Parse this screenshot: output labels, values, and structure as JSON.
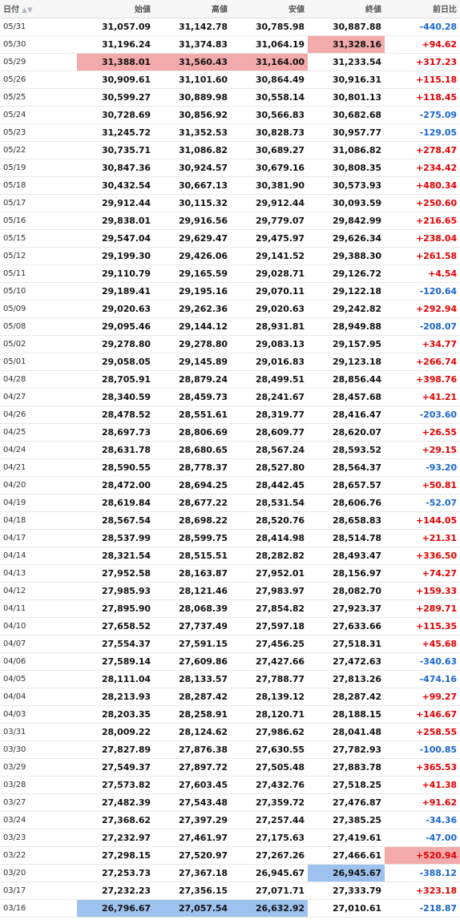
{
  "header": {
    "date": "日付",
    "open": "始値",
    "high": "高値",
    "low": "安値",
    "close": "終値",
    "change": "前日比"
  },
  "rows": [
    {
      "date": "05/31",
      "open": "31,057.09",
      "high": "31,142.78",
      "low": "30,785.98",
      "close": "30,887.88",
      "change": "-440.28"
    },
    {
      "date": "05/30",
      "open": "31,196.24",
      "high": "31,374.83",
      "low": "31,064.19",
      "close": "31,328.16",
      "change": "+94.62"
    },
    {
      "date": "05/29",
      "open": "31,388.01",
      "high": "31,560.43",
      "low": "31,164.00",
      "close": "31,233.54",
      "change": "+317.23"
    },
    {
      "date": "05/26",
      "open": "30,909.61",
      "high": "31,101.60",
      "low": "30,864.49",
      "close": "30,916.31",
      "change": "+115.18"
    },
    {
      "date": "05/25",
      "open": "30,599.27",
      "high": "30,889.98",
      "low": "30,558.14",
      "close": "30,801.13",
      "change": "+118.45"
    },
    {
      "date": "05/24",
      "open": "30,728.69",
      "high": "30,856.92",
      "low": "30,566.83",
      "close": "30,682.68",
      "change": "-275.09"
    },
    {
      "date": "05/23",
      "open": "31,245.72",
      "high": "31,352.53",
      "low": "30,828.73",
      "close": "30,957.77",
      "change": "-129.05"
    },
    {
      "date": "05/22",
      "open": "30,735.71",
      "high": "31,086.82",
      "low": "30,689.27",
      "close": "31,086.82",
      "change": "+278.47"
    },
    {
      "date": "05/19",
      "open": "30,847.36",
      "high": "30,924.57",
      "low": "30,679.16",
      "close": "30,808.35",
      "change": "+234.42"
    },
    {
      "date": "05/18",
      "open": "30,432.54",
      "high": "30,667.13",
      "low": "30,381.90",
      "close": "30,573.93",
      "change": "+480.34"
    },
    {
      "date": "05/17",
      "open": "29,912.44",
      "high": "30,115.32",
      "low": "29,912.44",
      "close": "30,093.59",
      "change": "+250.60"
    },
    {
      "date": "05/16",
      "open": "29,838.01",
      "high": "29,916.56",
      "low": "29,779.07",
      "close": "29,842.99",
      "change": "+216.65"
    },
    {
      "date": "05/15",
      "open": "29,547.04",
      "high": "29,629.47",
      "low": "29,475.97",
      "close": "29,626.34",
      "change": "+238.04"
    },
    {
      "date": "05/12",
      "open": "29,199.30",
      "high": "29,426.06",
      "low": "29,141.52",
      "close": "29,388.30",
      "change": "+261.58"
    },
    {
      "date": "05/11",
      "open": "29,110.79",
      "high": "29,165.59",
      "low": "29,028.71",
      "close": "29,126.72",
      "change": "+4.54"
    },
    {
      "date": "05/10",
      "open": "29,189.41",
      "high": "29,195.16",
      "low": "29,070.11",
      "close": "29,122.18",
      "change": "-120.64"
    },
    {
      "date": "05/09",
      "open": "29,020.63",
      "high": "29,262.36",
      "low": "29,020.63",
      "close": "29,242.82",
      "change": "+292.94"
    },
    {
      "date": "05/08",
      "open": "29,095.46",
      "high": "29,144.12",
      "low": "28,931.81",
      "close": "28,949.88",
      "change": "-208.07"
    },
    {
      "date": "05/02",
      "open": "29,278.80",
      "high": "29,278.80",
      "low": "29,083.13",
      "close": "29,157.95",
      "change": "+34.77"
    },
    {
      "date": "05/01",
      "open": "29,058.05",
      "high": "29,145.89",
      "low": "29,016.83",
      "close": "29,123.18",
      "change": "+266.74"
    },
    {
      "date": "04/28",
      "open": "28,705.91",
      "high": "28,879.24",
      "low": "28,499.51",
      "close": "28,856.44",
      "change": "+398.76"
    },
    {
      "date": "04/27",
      "open": "28,340.59",
      "high": "28,459.73",
      "low": "28,241.67",
      "close": "28,457.68",
      "change": "+41.21"
    },
    {
      "date": "04/26",
      "open": "28,478.52",
      "high": "28,551.61",
      "low": "28,319.77",
      "close": "28,416.47",
      "change": "-203.60"
    },
    {
      "date": "04/25",
      "open": "28,697.73",
      "high": "28,806.69",
      "low": "28,609.77",
      "close": "28,620.07",
      "change": "+26.55"
    },
    {
      "date": "04/24",
      "open": "28,631.78",
      "high": "28,680.65",
      "low": "28,567.24",
      "close": "28,593.52",
      "change": "+29.15"
    },
    {
      "date": "04/21",
      "open": "28,590.55",
      "high": "28,778.37",
      "low": "28,527.80",
      "close": "28,564.37",
      "change": "-93.20"
    },
    {
      "date": "04/20",
      "open": "28,472.00",
      "high": "28,694.25",
      "low": "28,442.45",
      "close": "28,657.57",
      "change": "+50.81"
    },
    {
      "date": "04/19",
      "open": "28,619.84",
      "high": "28,677.22",
      "low": "28,531.54",
      "close": "28,606.76",
      "change": "-52.07"
    },
    {
      "date": "04/18",
      "open": "28,567.54",
      "high": "28,698.22",
      "low": "28,520.76",
      "close": "28,658.83",
      "change": "+144.05"
    },
    {
      "date": "04/17",
      "open": "28,537.99",
      "high": "28,599.75",
      "low": "28,414.98",
      "close": "28,514.78",
      "change": "+21.31"
    },
    {
      "date": "04/14",
      "open": "28,321.54",
      "high": "28,515.51",
      "low": "28,282.82",
      "close": "28,493.47",
      "change": "+336.50"
    },
    {
      "date": "04/13",
      "open": "27,952.58",
      "high": "28,163.87",
      "low": "27,952.01",
      "close": "28,156.97",
      "change": "+74.27"
    },
    {
      "date": "04/12",
      "open": "27,985.93",
      "high": "28,121.46",
      "low": "27,983.97",
      "close": "28,082.70",
      "change": "+159.33"
    },
    {
      "date": "04/11",
      "open": "27,895.90",
      "high": "28,068.39",
      "low": "27,854.82",
      "close": "27,923.37",
      "change": "+289.71"
    },
    {
      "date": "04/10",
      "open": "27,658.52",
      "high": "27,737.49",
      "low": "27,597.18",
      "close": "27,633.66",
      "change": "+115.35"
    },
    {
      "date": "04/07",
      "open": "27,554.37",
      "high": "27,591.15",
      "low": "27,456.25",
      "close": "27,518.31",
      "change": "+45.68"
    },
    {
      "date": "04/06",
      "open": "27,589.14",
      "high": "27,609.86",
      "low": "27,427.66",
      "close": "27,472.63",
      "change": "-340.63"
    },
    {
      "date": "04/05",
      "open": "28,111.04",
      "high": "28,133.57",
      "low": "27,788.77",
      "close": "27,813.26",
      "change": "-474.16"
    },
    {
      "date": "04/04",
      "open": "28,213.93",
      "high": "28,287.42",
      "low": "28,139.12",
      "close": "28,287.42",
      "change": "+99.27"
    },
    {
      "date": "04/03",
      "open": "28,203.35",
      "high": "28,258.91",
      "low": "28,120.71",
      "close": "28,188.15",
      "change": "+146.67"
    },
    {
      "date": "03/31",
      "open": "28,009.22",
      "high": "28,124.62",
      "low": "27,986.62",
      "close": "28,041.48",
      "change": "+258.55"
    },
    {
      "date": "03/30",
      "open": "27,827.89",
      "high": "27,876.38",
      "low": "27,630.55",
      "close": "27,782.93",
      "change": "-100.85"
    },
    {
      "date": "03/29",
      "open": "27,549.37",
      "high": "27,897.72",
      "low": "27,505.48",
      "close": "27,883.78",
      "change": "+365.53"
    },
    {
      "date": "03/28",
      "open": "27,573.82",
      "high": "27,603.45",
      "low": "27,432.76",
      "close": "27,518.25",
      "change": "+41.38"
    },
    {
      "date": "03/27",
      "open": "27,482.39",
      "high": "27,543.48",
      "low": "27,359.72",
      "close": "27,476.87",
      "change": "+91.62"
    },
    {
      "date": "03/24",
      "open": "27,368.62",
      "high": "27,397.29",
      "low": "27,257.44",
      "close": "27,385.25",
      "change": "-34.36"
    },
    {
      "date": "03/23",
      "open": "27,232.97",
      "high": "27,461.97",
      "low": "27,175.63",
      "close": "27,419.61",
      "change": "-47.00"
    },
    {
      "date": "03/22",
      "open": "27,298.15",
      "high": "27,520.97",
      "low": "27,267.26",
      "close": "27,466.61",
      "change": "+520.94"
    },
    {
      "date": "03/20",
      "open": "27,253.73",
      "high": "27,367.18",
      "low": "26,945.67",
      "close": "26,945.67",
      "change": "-388.12"
    },
    {
      "date": "03/17",
      "open": "27,232.23",
      "high": "27,356.15",
      "low": "27,071.71",
      "close": "27,333.79",
      "change": "+323.18"
    },
    {
      "date": "03/16",
      "open": "26,796.67",
      "high": "27,057.54",
      "low": "26,632.92",
      "close": "27,010.61",
      "change": "-218.87"
    }
  ],
  "highlights": {
    "max": [
      [
        1,
        "close"
      ],
      [
        2,
        "open"
      ],
      [
        2,
        "high"
      ],
      [
        2,
        "low"
      ],
      [
        47,
        "change"
      ]
    ],
    "min": [
      [
        48,
        "close"
      ],
      [
        50,
        "open"
      ],
      [
        50,
        "high"
      ],
      [
        50,
        "low"
      ]
    ]
  },
  "colors": {
    "positive": "#e60000",
    "negative": "#1a66d0",
    "highlight_max": "#f3aaaa",
    "highlight_min": "#9ec2f0"
  },
  "icons": {
    "sort": "sort-up-down-icon"
  }
}
